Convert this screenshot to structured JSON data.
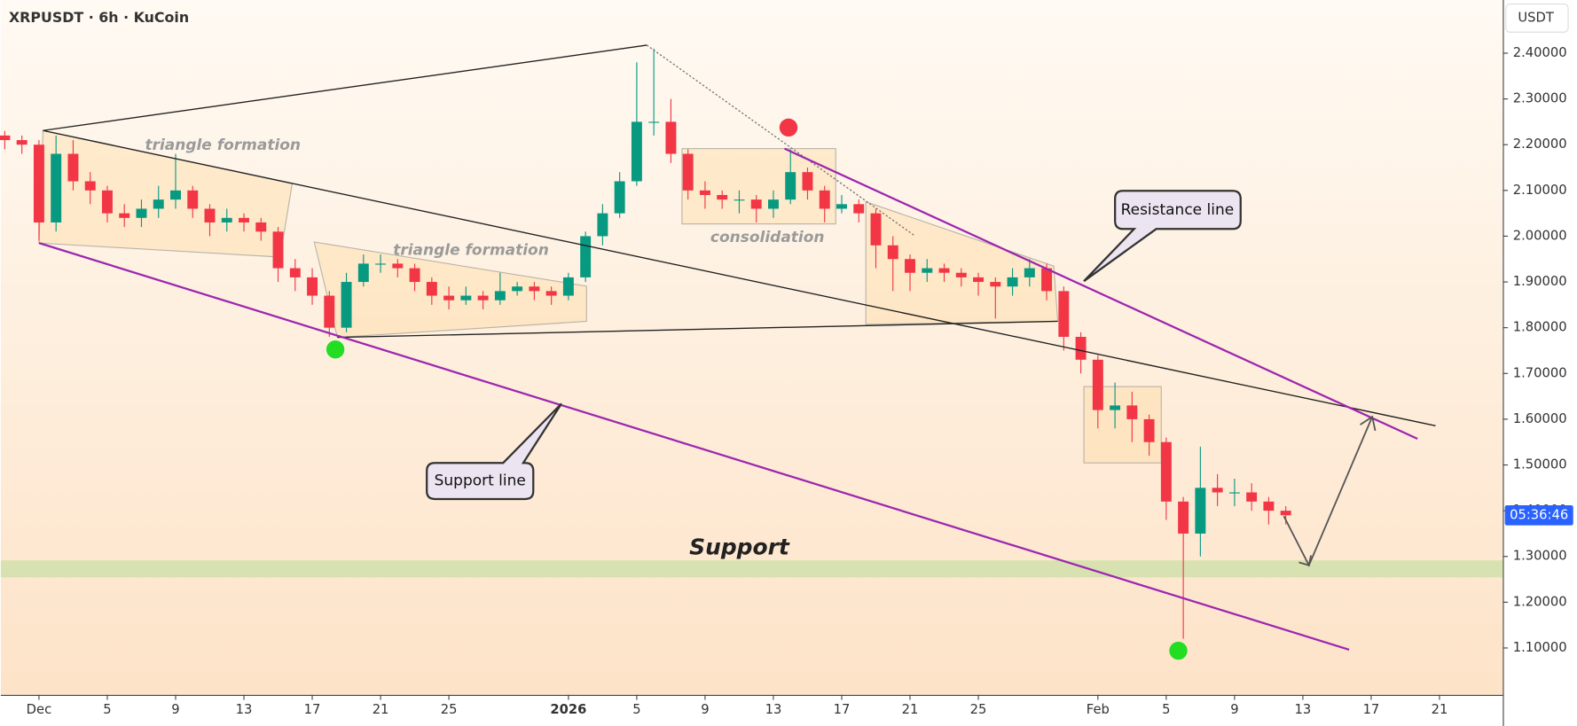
{
  "chart_data": {
    "type": "candlestick",
    "title": "XRPUSDT · 6h · KuCoin",
    "currency": "USDT",
    "countdown": "05:36:46",
    "annotations": [
      "triangle formation",
      "triangle formation",
      "consolidation",
      "Resistance line",
      "Support line",
      "Support"
    ],
    "up_color": "#089981",
    "down_color": "#f23645",
    "x": [
      -2,
      -1,
      0,
      1,
      2,
      3,
      4,
      5,
      6,
      7,
      8,
      9,
      10,
      11,
      12,
      13,
      14,
      15,
      16,
      17,
      18,
      19,
      20,
      21,
      22,
      23,
      24,
      25,
      26,
      27,
      28,
      29,
      30,
      31,
      32,
      33,
      34,
      35,
      36,
      37,
      38,
      39,
      40,
      41,
      42,
      43,
      44,
      45,
      46,
      47,
      48,
      49,
      50,
      51,
      52,
      53,
      54,
      55,
      56,
      57,
      58,
      59,
      60,
      61,
      62,
      63,
      64,
      65,
      66,
      67,
      68,
      69,
      70,
      71,
      72,
      73
    ],
    "open": [
      2.22,
      2.21,
      2.2,
      2.03,
      2.18,
      2.12,
      2.1,
      2.05,
      2.04,
      2.06,
      2.08,
      2.1,
      2.06,
      2.03,
      2.04,
      2.03,
      2.01,
      1.93,
      1.91,
      1.87,
      1.8,
      1.9,
      1.94,
      1.94,
      1.93,
      1.9,
      1.87,
      1.86,
      1.87,
      1.86,
      1.88,
      1.89,
      1.88,
      1.87,
      1.91,
      2.0,
      2.05,
      2.12,
      2.25,
      2.25,
      2.18,
      2.1,
      2.09,
      2.08,
      2.08,
      2.06,
      2.08,
      2.14,
      2.1,
      2.06,
      2.07,
      2.05,
      1.98,
      1.95,
      1.92,
      1.93,
      1.92,
      1.91,
      1.9,
      1.89,
      1.91,
      1.93,
      1.88,
      1.78,
      1.73,
      1.62,
      1.63,
      1.6,
      1.55,
      1.42,
      1.35,
      1.45,
      1.44,
      1.44,
      1.42,
      1.4
    ],
    "high": [
      2.23,
      2.22,
      2.21,
      2.22,
      2.21,
      2.14,
      2.11,
      2.07,
      2.08,
      2.11,
      2.18,
      2.11,
      2.07,
      2.06,
      2.05,
      2.04,
      2.02,
      1.95,
      1.93,
      1.88,
      1.92,
      1.96,
      1.96,
      1.95,
      1.94,
      1.91,
      1.89,
      1.89,
      1.88,
      1.92,
      1.9,
      1.9,
      1.89,
      1.92,
      2.01,
      2.07,
      2.14,
      2.38,
      2.41,
      2.3,
      2.19,
      2.12,
      2.1,
      2.1,
      2.09,
      2.1,
      2.19,
      2.15,
      2.11,
      2.09,
      2.08,
      2.06,
      2.0,
      1.96,
      1.95,
      1.94,
      1.93,
      1.92,
      1.91,
      1.93,
      1.95,
      1.94,
      1.89,
      1.79,
      1.74,
      1.68,
      1.66,
      1.61,
      1.56,
      1.43,
      1.54,
      1.48,
      1.47,
      1.46,
      1.43,
      1.41
    ],
    "low": [
      2.19,
      2.18,
      1.99,
      2.01,
      2.1,
      2.07,
      2.03,
      2.02,
      2.02,
      2.04,
      2.06,
      2.04,
      2.0,
      2.01,
      2.01,
      1.99,
      1.9,
      1.88,
      1.85,
      1.78,
      1.79,
      1.89,
      1.92,
      1.91,
      1.88,
      1.85,
      1.84,
      1.85,
      1.84,
      1.85,
      1.87,
      1.86,
      1.85,
      1.86,
      1.9,
      1.98,
      2.04,
      2.11,
      2.22,
      2.16,
      2.08,
      2.06,
      2.06,
      2.05,
      2.03,
      2.04,
      2.07,
      2.08,
      2.03,
      2.05,
      2.03,
      1.93,
      1.88,
      1.88,
      1.9,
      1.9,
      1.89,
      1.87,
      1.82,
      1.87,
      1.89,
      1.86,
      1.75,
      1.7,
      1.58,
      1.58,
      1.55,
      1.52,
      1.38,
      1.12,
      1.3,
      1.41,
      1.41,
      1.4,
      1.37,
      1.37
    ],
    "close": [
      2.21,
      2.2,
      2.03,
      2.18,
      2.12,
      2.1,
      2.05,
      2.04,
      2.06,
      2.08,
      2.1,
      2.06,
      2.03,
      2.04,
      2.03,
      2.01,
      1.93,
      1.91,
      1.87,
      1.8,
      1.9,
      1.94,
      1.94,
      1.93,
      1.9,
      1.87,
      1.86,
      1.87,
      1.86,
      1.88,
      1.89,
      1.88,
      1.87,
      1.91,
      2.0,
      2.05,
      2.12,
      2.25,
      2.25,
      2.18,
      2.1,
      2.09,
      2.08,
      2.08,
      2.06,
      2.08,
      2.14,
      2.1,
      2.06,
      2.07,
      2.05,
      1.98,
      1.95,
      1.92,
      1.93,
      1.92,
      1.91,
      1.9,
      1.89,
      1.91,
      1.93,
      1.88,
      1.78,
      1.73,
      1.62,
      1.63,
      1.6,
      1.55,
      1.42,
      1.35,
      1.45,
      1.44,
      1.44,
      1.42,
      1.4,
      1.39
    ],
    "xlim": [
      -2.235,
      85.71
    ],
    "ylim": [
      0.9975,
      2.5162
    ],
    "xticks": [
      {
        "value": 0,
        "label": "Dec"
      },
      {
        "value": 4,
        "label": "5"
      },
      {
        "value": 8,
        "label": "9"
      },
      {
        "value": 12,
        "label": "13"
      },
      {
        "value": 16,
        "label": "17"
      },
      {
        "value": 20,
        "label": "21"
      },
      {
        "value": 24,
        "label": "25"
      },
      {
        "value": 31,
        "label": "2026"
      },
      {
        "value": 35,
        "label": "5"
      },
      {
        "value": 39,
        "label": "9"
      },
      {
        "value": 43,
        "label": "13"
      },
      {
        "value": 47,
        "label": "17"
      },
      {
        "value": 51,
        "label": "21"
      },
      {
        "value": 55,
        "label": "25"
      },
      {
        "value": 62,
        "label": "Feb"
      },
      {
        "value": 66,
        "label": "5"
      },
      {
        "value": 70,
        "label": "9"
      },
      {
        "value": 74,
        "label": "13"
      },
      {
        "value": 78,
        "label": "17"
      },
      {
        "value": 82,
        "label": "21"
      }
    ],
    "yticks": [
      {
        "value": 2.4,
        "label": "2.40000"
      },
      {
        "value": 2.3,
        "label": "2.30000"
      },
      {
        "value": 2.2,
        "label": "2.20000"
      },
      {
        "value": 2.1,
        "label": "2.10000"
      },
      {
        "value": 2.0,
        "label": "2.00000"
      },
      {
        "value": 1.9,
        "label": "1.90000"
      },
      {
        "value": 1.8,
        "label": "1.80000"
      },
      {
        "value": 1.7,
        "label": "1.70000"
      },
      {
        "value": 1.6,
        "label": "1.60000"
      },
      {
        "value": 1.5,
        "label": "1.50000"
      },
      {
        "value": 1.4,
        "label": "1.40000"
      },
      {
        "value": 1.3,
        "label": "1.30000"
      },
      {
        "value": 1.2,
        "label": "1.20000"
      },
      {
        "value": 1.1,
        "label": "1.10000"
      }
    ],
    "grid": false
  }
}
